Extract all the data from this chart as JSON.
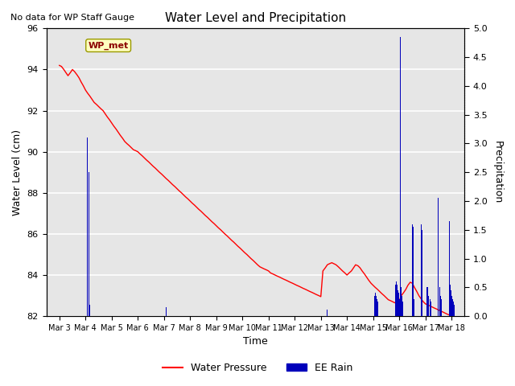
{
  "title": "Water Level and Precipitation",
  "subtitle": "No data for WP Staff Gauge",
  "xlabel": "Time",
  "ylabel_left": "Water Level (cm)",
  "ylabel_right": "Precipitation",
  "legend_label_wl": "Water Pressure",
  "legend_label_rain": "EE Rain",
  "legend_label_wp_met": "WP_met",
  "wl_color": "#ff0000",
  "rain_color": "#0000bb",
  "ylim_left": [
    82,
    96
  ],
  "ylim_right": [
    0,
    5
  ],
  "yticks_left": [
    82,
    84,
    86,
    88,
    90,
    92,
    94,
    96
  ],
  "yticks_right": [
    0.0,
    0.5,
    1.0,
    1.5,
    2.0,
    2.5,
    3.0,
    3.5,
    4.0,
    4.5,
    5.0
  ],
  "xtick_labels": [
    "Mar 3",
    "Mar 4",
    "Mar 5",
    "Mar 6",
    "Mar 7",
    "Mar 8",
    "Mar 9",
    "Mar 10",
    "Mar 11",
    "Mar 12",
    "Mar 13",
    "Mar 14",
    "Mar 15",
    "Mar 16",
    "Mar 17",
    "Mar 18"
  ],
  "water_level_x": [
    0.0,
    0.08,
    0.17,
    0.25,
    0.33,
    0.42,
    0.5,
    0.58,
    0.67,
    0.75,
    0.83,
    0.92,
    1.0,
    1.08,
    1.17,
    1.25,
    1.33,
    1.42,
    1.5,
    1.58,
    1.67,
    1.75,
    1.83,
    1.92,
    2.0,
    2.08,
    2.17,
    2.25,
    2.33,
    2.42,
    2.5,
    2.58,
    2.67,
    2.75,
    2.83,
    2.92,
    3.0,
    3.08,
    3.17,
    3.25,
    3.33,
    3.42,
    3.5,
    3.58,
    3.67,
    3.75,
    3.83,
    3.92,
    4.0,
    4.08,
    4.17,
    4.25,
    4.33,
    4.42,
    4.5,
    4.58,
    4.67,
    4.75,
    4.83,
    4.92,
    5.0,
    5.08,
    5.17,
    5.25,
    5.33,
    5.42,
    5.5,
    5.58,
    5.67,
    5.75,
    5.83,
    5.92,
    6.0,
    6.08,
    6.17,
    6.25,
    6.33,
    6.42,
    6.5,
    6.58,
    6.67,
    6.75,
    6.83,
    6.92,
    7.0,
    7.08,
    7.17,
    7.25,
    7.33,
    7.42,
    7.5,
    7.58,
    7.67,
    7.75,
    7.83,
    7.92,
    8.0,
    8.08,
    8.17,
    8.25,
    8.33,
    8.42,
    8.5,
    8.58,
    8.67,
    8.75,
    8.83,
    8.92,
    9.0,
    9.08,
    9.17,
    9.25,
    9.33,
    9.42,
    9.5,
    9.58,
    9.67,
    9.75,
    9.83,
    9.92,
    10.0,
    10.08,
    10.17,
    10.25,
    10.33,
    10.42,
    10.5,
    10.58,
    10.67,
    10.75,
    10.83,
    10.92,
    11.0,
    11.08,
    11.17,
    11.25,
    11.33,
    11.42,
    11.5,
    11.58,
    11.67,
    11.75,
    11.83,
    11.92,
    12.0,
    12.08,
    12.17,
    12.25,
    12.33,
    12.42,
    12.5,
    12.58,
    12.67,
    12.75,
    12.83,
    12.92,
    13.0,
    13.08,
    13.17,
    13.25,
    13.33,
    13.42,
    13.5,
    13.58,
    13.67,
    13.75,
    13.83,
    13.92,
    14.0,
    14.08,
    14.17,
    14.25,
    14.33,
    14.42,
    14.5,
    14.58,
    14.67,
    14.75,
    14.83,
    14.92,
    15.0
  ],
  "water_level_y": [
    94.2,
    94.15,
    94.0,
    93.85,
    93.7,
    93.85,
    94.0,
    93.9,
    93.75,
    93.6,
    93.4,
    93.2,
    93.0,
    92.85,
    92.7,
    92.55,
    92.4,
    92.3,
    92.2,
    92.1,
    92.0,
    91.85,
    91.7,
    91.55,
    91.4,
    91.25,
    91.1,
    90.95,
    90.8,
    90.65,
    90.5,
    90.4,
    90.3,
    90.2,
    90.1,
    90.05,
    90.0,
    89.9,
    89.8,
    89.7,
    89.6,
    89.5,
    89.4,
    89.3,
    89.2,
    89.1,
    89.0,
    88.9,
    88.8,
    88.7,
    88.6,
    88.5,
    88.4,
    88.3,
    88.2,
    88.1,
    88.0,
    87.9,
    87.8,
    87.7,
    87.6,
    87.5,
    87.4,
    87.3,
    87.2,
    87.1,
    87.0,
    86.9,
    86.8,
    86.7,
    86.6,
    86.5,
    86.4,
    86.3,
    86.2,
    86.1,
    86.0,
    85.9,
    85.8,
    85.7,
    85.6,
    85.5,
    85.4,
    85.3,
    85.2,
    85.1,
    85.0,
    84.9,
    84.8,
    84.7,
    84.6,
    84.5,
    84.4,
    84.35,
    84.3,
    84.25,
    84.2,
    84.1,
    84.05,
    84.0,
    83.95,
    83.9,
    83.85,
    83.8,
    83.75,
    83.7,
    83.65,
    83.6,
    83.55,
    83.5,
    83.45,
    83.4,
    83.35,
    83.3,
    83.25,
    83.2,
    83.15,
    83.1,
    83.05,
    83.0,
    82.95,
    84.2,
    84.35,
    84.5,
    84.55,
    84.6,
    84.55,
    84.5,
    84.4,
    84.3,
    84.2,
    84.1,
    84.0,
    84.1,
    84.2,
    84.35,
    84.5,
    84.45,
    84.35,
    84.2,
    84.05,
    83.9,
    83.75,
    83.6,
    83.5,
    83.4,
    83.3,
    83.2,
    83.1,
    83.0,
    82.9,
    82.8,
    82.75,
    82.7,
    82.65,
    82.7,
    82.75,
    83.0,
    83.15,
    83.3,
    83.5,
    83.65,
    83.6,
    83.4,
    83.2,
    83.0,
    82.85,
    82.7,
    82.6,
    82.55,
    82.5,
    82.45,
    82.4,
    82.35,
    82.3,
    82.25,
    82.2,
    82.15,
    82.1,
    82.05,
    82.0
  ],
  "rain_x": [
    1.08,
    1.12,
    1.15,
    1.17,
    4.08,
    10.25,
    12.05,
    12.08,
    12.1,
    12.12,
    12.15,
    12.18,
    12.85,
    12.88,
    12.92,
    12.95,
    12.97,
    13.0,
    13.05,
    13.08,
    13.1,
    13.13,
    13.15,
    13.5,
    13.53,
    13.57,
    13.85,
    13.88,
    13.92,
    13.95,
    14.05,
    14.08,
    14.1,
    14.13,
    14.17,
    14.2,
    14.5,
    14.55,
    14.58,
    14.62,
    14.92,
    14.95,
    14.97,
    15.0,
    15.03,
    15.07,
    15.1
  ],
  "rain_h": [
    3.1,
    2.5,
    0.2,
    0.1,
    0.15,
    0.12,
    0.35,
    0.4,
    0.5,
    0.35,
    0.3,
    0.25,
    0.55,
    0.6,
    0.55,
    0.45,
    0.4,
    0.3,
    4.85,
    0.5,
    0.35,
    0.25,
    0.2,
    1.6,
    1.55,
    0.3,
    1.6,
    1.5,
    0.4,
    0.3,
    0.5,
    0.5,
    0.45,
    0.35,
    0.3,
    0.25,
    2.05,
    0.5,
    0.35,
    0.3,
    1.65,
    0.55,
    0.45,
    0.35,
    0.3,
    0.25,
    0.2
  ]
}
